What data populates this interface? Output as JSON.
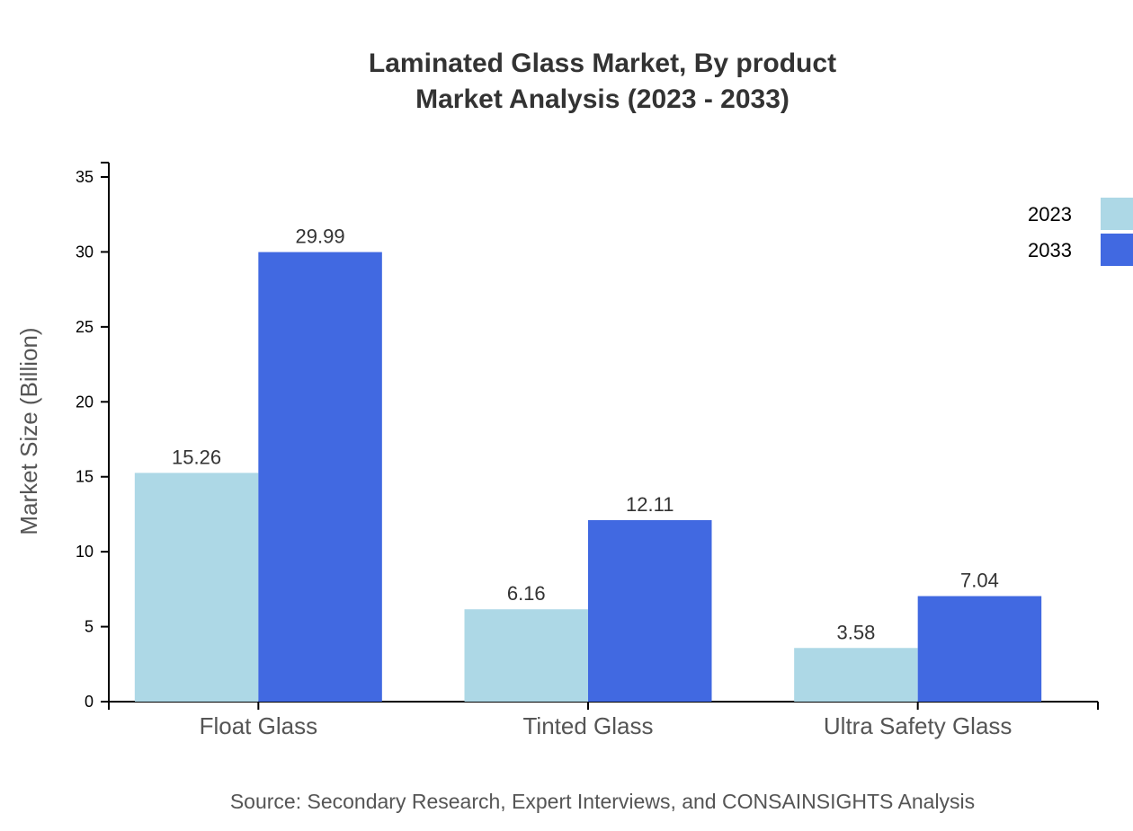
{
  "chart_data": {
    "type": "bar",
    "title": "Laminated Glass Market, By product",
    "subtitle": "Market Analysis (2023 - 2033)",
    "xlabel": "",
    "ylabel": "Market Size (Billion)",
    "ylim": [
      0,
      35
    ],
    "yticks": [
      0,
      5,
      10,
      15,
      20,
      25,
      30,
      35
    ],
    "categories": [
      "Float Glass",
      "Tinted Glass",
      "Ultra Safety Glass"
    ],
    "series": [
      {
        "name": "2023",
        "color": "#add8e6",
        "values": [
          15.26,
          6.16,
          3.58
        ]
      },
      {
        "name": "2033",
        "color": "#4169e1",
        "values": [
          29.99,
          12.11,
          7.04
        ]
      }
    ],
    "legend_position": "top-right",
    "grid": false,
    "source": "Source: Secondary Research, Expert Interviews, and CONSAINSIGHTS Analysis"
  }
}
